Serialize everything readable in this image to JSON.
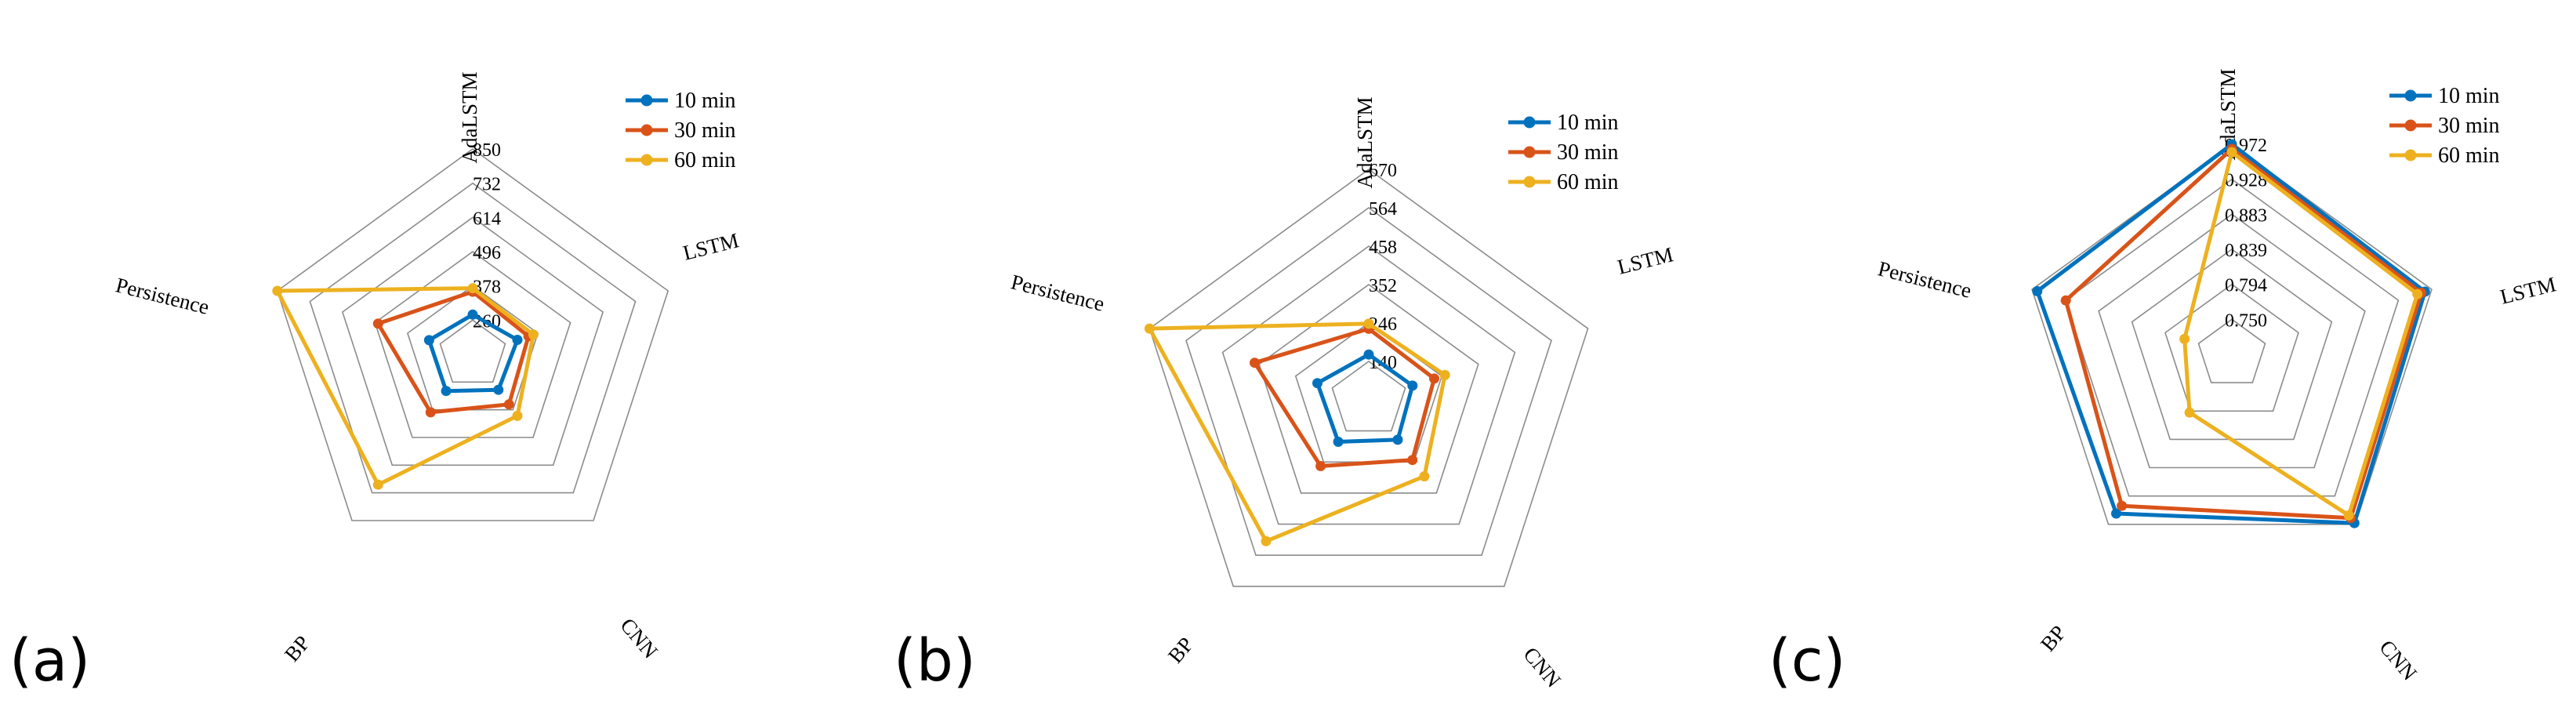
{
  "chart_data": [
    {
      "type": "radar",
      "panel_label": "(a)",
      "axes": [
        "AdaLSTM",
        "LSTM",
        "CNN",
        "BP",
        "Persistence"
      ],
      "tick_labels": [
        "260",
        "378",
        "496",
        "614",
        "732",
        "850"
      ],
      "range": [
        142,
        850
      ],
      "series": [
        {
          "name": "10 min",
          "color": "#0072BD",
          "values": [
            279,
            304,
            293,
            298,
            300
          ]
        },
        {
          "name": "30 min",
          "color": "#D95319",
          "values": [
            358,
            344,
            355,
            389,
            485
          ]
        },
        {
          "name": "60 min",
          "color": "#EDB120",
          "values": [
            370,
            362,
            404,
            697,
            850
          ]
        }
      ],
      "legend_position": "top-right"
    },
    {
      "type": "radar",
      "panel_label": "(b)",
      "axes": [
        "AdaLSTM",
        "LSTM",
        "CNN",
        "BP",
        "Persistence"
      ],
      "tick_labels": [
        "140",
        "246",
        "352",
        "458",
        "564",
        "670"
      ],
      "range": [
        34,
        670
      ],
      "series": [
        {
          "name": "10 min",
          "color": "#0072BD",
          "values": [
            159,
            161,
            170,
            177,
            183
          ]
        },
        {
          "name": "30 min",
          "color": "#D95319",
          "values": [
            230,
            224,
            239,
            260,
            365
          ]
        },
        {
          "name": "60 min",
          "color": "#EDB120",
          "values": [
            244,
            255,
            295,
            516,
            670
          ]
        }
      ],
      "legend_position": "top-right"
    },
    {
      "type": "radar",
      "panel_label": "(c)",
      "axes": [
        "AdaLSTM",
        "LSTM",
        "CNN",
        "BP",
        "Persistence"
      ],
      "tick_labels": [
        "0.750",
        "0.794",
        "0.839",
        "0.883",
        "0.928",
        "0.972"
      ],
      "range": [
        0.706,
        0.972
      ],
      "series": [
        {
          "name": "10 min",
          "color": "#0072BD",
          "values": [
            0.972,
            0.963,
            0.97,
            0.955,
            0.965
          ]
        },
        {
          "name": "30 min",
          "color": "#D95319",
          "values": [
            0.966,
            0.958,
            0.962,
            0.943,
            0.927
          ]
        },
        {
          "name": "60 min",
          "color": "#EDB120",
          "values": [
            0.962,
            0.953,
            0.958,
            0.797,
            0.769
          ]
        }
      ],
      "legend_position": "top-right"
    }
  ]
}
